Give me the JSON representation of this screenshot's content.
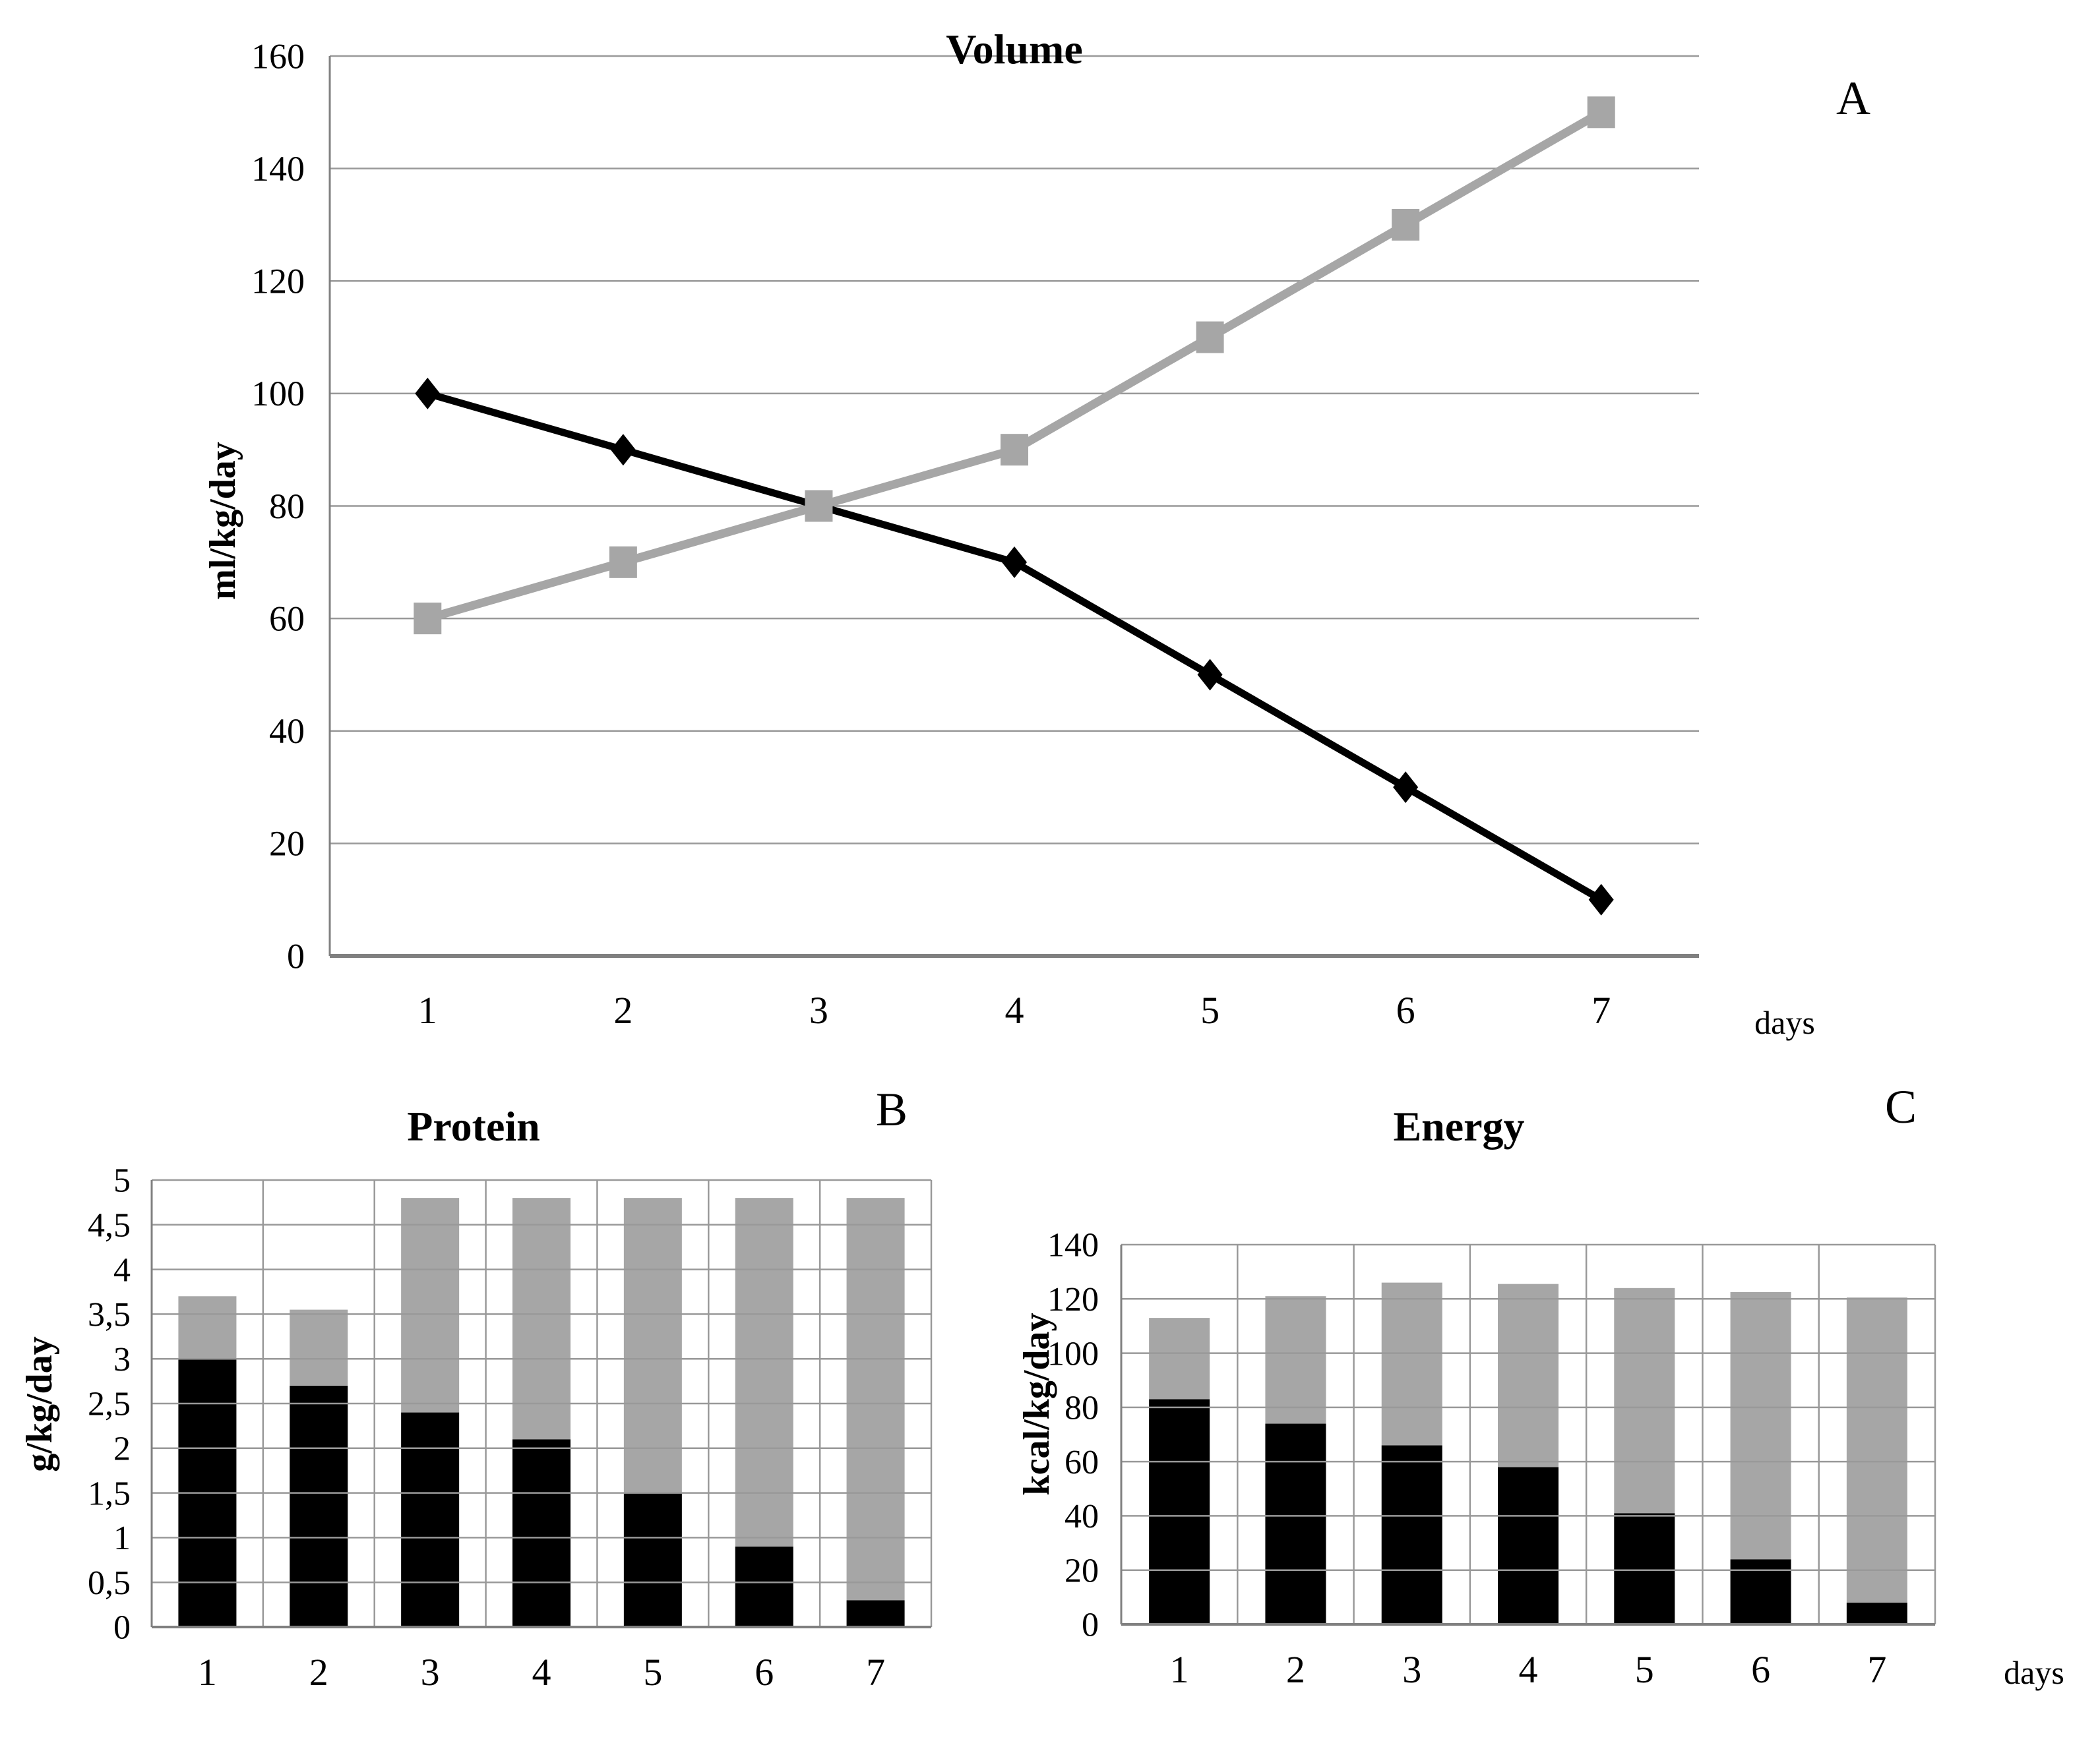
{
  "panels": {
    "a": {
      "letter": "A",
      "title": "Volume",
      "ylabel": "ml/kg/day",
      "xlabel": "days"
    },
    "b": {
      "letter": "B",
      "title": "Protein",
      "ylabel": "g/kg/day",
      "xlabel": ""
    },
    "c": {
      "letter": "C",
      "title": "Energy",
      "ylabel": "kcal/kg/day",
      "xlabel": "days"
    }
  },
  "colors": {
    "series_black": "#000000",
    "series_gray": "#a6a6a6",
    "gridline": "#999999",
    "axis": "#808080",
    "text": "#000000",
    "background": "#ffffff"
  },
  "chart_data": [
    {
      "type": "line",
      "panel": "A",
      "title": "Volume",
      "ylabel": "ml/kg/day",
      "xlabel": "days",
      "x": [
        1,
        2,
        3,
        4,
        5,
        6,
        7
      ],
      "xtick_labels": [
        "1",
        "2",
        "3",
        "4",
        "5",
        "6",
        "7"
      ],
      "ylim": [
        0,
        160
      ],
      "ytick_step": 20,
      "ytick_labels": [
        "0",
        "20",
        "40",
        "60",
        "80",
        "100",
        "120",
        "140",
        "160"
      ],
      "grid": true,
      "legend": "none",
      "series": [
        {
          "name": "decreasing-black-diamond",
          "marker": "diamond",
          "color": "#000000",
          "values": [
            100,
            90,
            80,
            70,
            50,
            30,
            10
          ]
        },
        {
          "name": "increasing-gray-square",
          "marker": "square",
          "color": "#a6a6a6",
          "values": [
            60,
            70,
            80,
            90,
            110,
            130,
            150
          ]
        }
      ]
    },
    {
      "type": "bar",
      "stacked": true,
      "panel": "B",
      "title": "Protein",
      "ylabel": "g/kg/day",
      "xlabel": "",
      "categories": [
        "1",
        "2",
        "3",
        "4",
        "5",
        "6",
        "7"
      ],
      "ylim": [
        0,
        5
      ],
      "ytick_step": 0.5,
      "ytick_labels": [
        "0",
        "0,5",
        "1",
        "1,5",
        "2",
        "2,5",
        "3",
        "3,5",
        "4",
        "4,5",
        "5"
      ],
      "grid": true,
      "legend": "none",
      "series": [
        {
          "name": "black-bottom-segment",
          "color": "#000000",
          "values": [
            3.0,
            2.7,
            2.4,
            2.1,
            1.5,
            0.9,
            0.3
          ]
        },
        {
          "name": "gray-top-segment",
          "color": "#a6a6a6",
          "values": [
            0.7,
            0.85,
            2.4,
            2.7,
            3.3,
            3.9,
            4.5
          ]
        }
      ],
      "stack_totals": [
        3.7,
        3.55,
        4.8,
        4.8,
        4.8,
        4.8,
        4.8
      ]
    },
    {
      "type": "bar",
      "stacked": true,
      "panel": "C",
      "title": "Energy",
      "ylabel": "kcal/kg/day",
      "xlabel": "days",
      "categories": [
        "1",
        "2",
        "3",
        "4",
        "5",
        "6",
        "7"
      ],
      "ylim": [
        0,
        140
      ],
      "ytick_step": 20,
      "ytick_labels": [
        "0",
        "20",
        "40",
        "60",
        "80",
        "100",
        "120",
        "140"
      ],
      "grid": true,
      "legend": "none",
      "series": [
        {
          "name": "black-bottom-segment",
          "color": "#000000",
          "values": [
            83,
            74,
            66,
            58,
            41,
            24,
            8
          ]
        },
        {
          "name": "gray-top-segment",
          "color": "#a6a6a6",
          "values": [
            30,
            47,
            60,
            67.5,
            83,
            98.5,
            112.5
          ]
        }
      ],
      "stack_totals": [
        113,
        121,
        126,
        125.5,
        124,
        122.5,
        120.5
      ]
    }
  ]
}
